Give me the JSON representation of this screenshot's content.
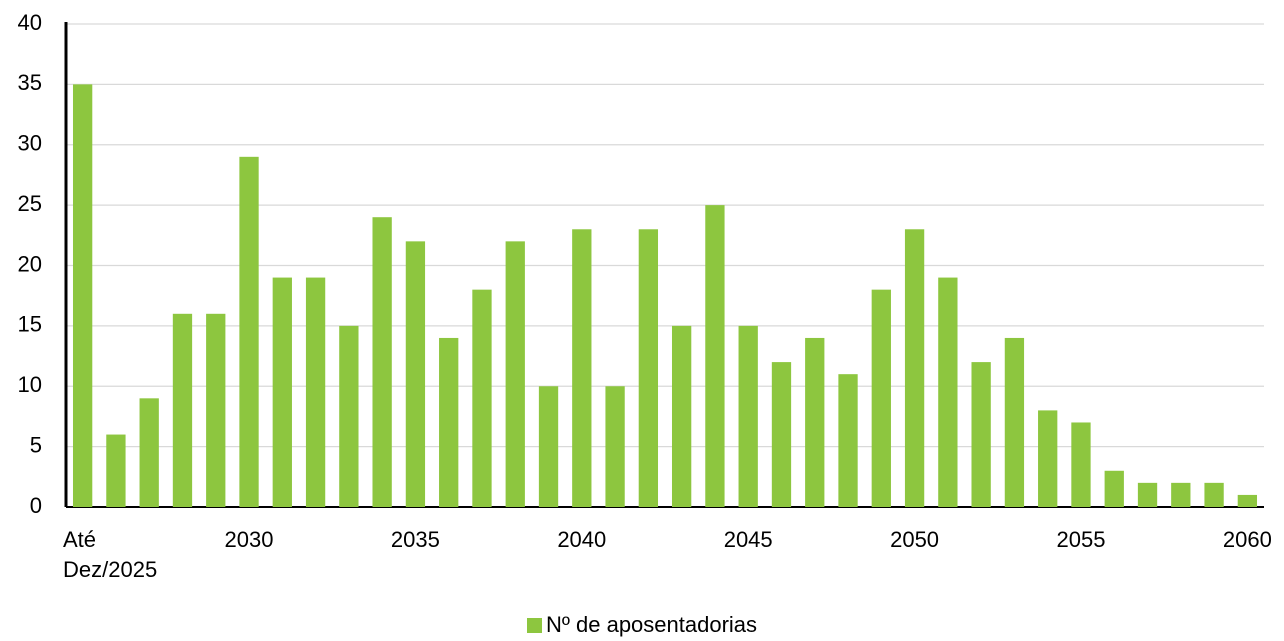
{
  "chart_data": {
    "type": "bar",
    "categories": [
      "Até Dez/2025",
      null,
      null,
      null,
      null,
      "2030",
      null,
      null,
      null,
      null,
      "2035",
      null,
      null,
      null,
      null,
      "2040",
      null,
      null,
      null,
      null,
      "2045",
      null,
      null,
      null,
      null,
      "2050",
      null,
      null,
      null,
      null,
      "2055",
      null,
      null,
      null,
      null,
      "2060"
    ],
    "series": [
      {
        "name": "Nº de aposentadorias",
        "color": "#8dc63f",
        "values": [
          35,
          6,
          9,
          16,
          16,
          29,
          19,
          19,
          15,
          24,
          22,
          14,
          18,
          22,
          10,
          23,
          10,
          23,
          15,
          25,
          15,
          12,
          14,
          11,
          18,
          23,
          19,
          12,
          14,
          8,
          7,
          3,
          2,
          2,
          2,
          1
        ]
      }
    ],
    "ylim": [
      0,
      40
    ],
    "yticks": [
      0,
      5,
      10,
      15,
      20,
      25,
      30,
      35,
      40
    ],
    "grid": true,
    "legend": "bottom"
  }
}
